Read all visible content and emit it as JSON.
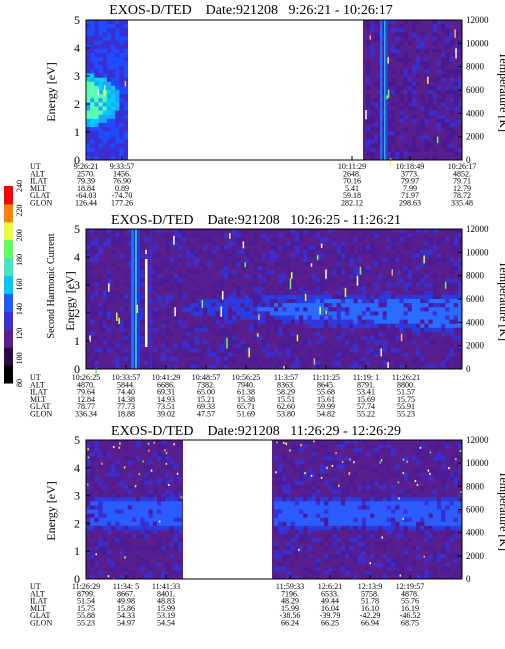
{
  "colorbar": {
    "label": "Second Harmonic Current",
    "ticks": [
      "80",
      "100",
      "120",
      "140",
      "160",
      "180",
      "200",
      "220",
      "240"
    ],
    "colors": [
      "#000000",
      "#2a0a4a",
      "#5a1f8f",
      "#3a2fd0",
      "#1e5cff",
      "#00c8ff",
      "#40e8c0",
      "#60ff60",
      "#e8ff40",
      "#ff8000",
      "#ff0000"
    ]
  },
  "orbit_labels": [
    "UT",
    "ALT",
    "ILAT",
    "MLT",
    "GLAT",
    "GLON"
  ],
  "panels": [
    {
      "title": "EXOS-D/TED    Date:921208   9:26:21 - 10:26:17",
      "ylabel": "Energy [eV]",
      "y2label": "Temperature [K]",
      "yticks": [
        "0",
        "1",
        "2",
        "3",
        "4",
        "5"
      ],
      "y2ticks": [
        "0",
        "2000",
        "4000",
        "6000",
        "8000",
        "10000",
        "12000"
      ],
      "orbit": [
        [
          "9:26:21",
          "2570.",
          "79.39",
          "18.84",
          "-64.03",
          "126.44"
        ],
        [
          "9:33:57",
          "1456.",
          "76.90",
          "0.89",
          "-74.70",
          "177.26"
        ],
        [
          "10:11:29",
          "2648.",
          "70.16",
          "5.41",
          "59.18",
          "282.12"
        ],
        [
          "10:18:49",
          "3773.",
          "79.97",
          "7.99",
          "71.97",
          "298.63"
        ],
        [
          "10:26:17",
          "4852.",
          "79.71",
          "12.79",
          "78.72",
          "335.48"
        ]
      ]
    },
    {
      "title": "EXOS-D/TED    Date:921208   10:26:25 - 11:26:21",
      "ylabel": "Energy [eV]",
      "y2label": "Temperature [K]",
      "yticks": [
        "0",
        "1",
        "2",
        "3",
        "4",
        "5"
      ],
      "y2ticks": [
        "0",
        "2000",
        "4000",
        "6000",
        "8000",
        "10000",
        "12000"
      ],
      "orbit": [
        [
          "10:26:25",
          "4870.",
          "79.64",
          "12.84",
          "78.77",
          "336.34"
        ],
        [
          "10:33:57",
          "5844.",
          "74.40",
          "14.38",
          "77.73",
          "18.88"
        ],
        [
          "10:41:29",
          "6686.",
          "69.31",
          "14.93",
          "73.51",
          "39.02"
        ],
        [
          "10:48:57",
          "7382.",
          "65.00",
          "15.21",
          "69.33",
          "47.57"
        ],
        [
          "10:56:25",
          "7940.",
          "61.38",
          "15.38",
          "65.71",
          "51.69"
        ],
        [
          "11:3:57",
          "8363.",
          "58.29",
          "15.51",
          "62.60",
          "53.80"
        ],
        [
          "11:11:25",
          "8645.",
          "55.68",
          "15.61",
          "59.99",
          "54.82"
        ],
        [
          "11:19: 1",
          "8791.",
          "53.41",
          "15.69",
          "57.74",
          "55.22"
        ],
        [
          "11:26:21",
          "8800.",
          "51.57",
          "15.75",
          "55.91",
          "55.23"
        ]
      ]
    },
    {
      "title": "EXOS-D/TED    Date:921208   11:26:29 - 12:26:29",
      "ylabel": "Energy [eV]",
      "y2label": "Temperature [K]",
      "yticks": [
        "0",
        "1",
        "2",
        "3",
        "4",
        "5"
      ],
      "y2ticks": [
        "0",
        "2000",
        "4000",
        "6000",
        "8000",
        "10000",
        "12000"
      ],
      "orbit": [
        [
          "11:26:29",
          "8799.",
          "51.54",
          "15.75",
          "55.88",
          "55.23"
        ],
        [
          "11:34: 5",
          "8667.",
          "49.98",
          "15.86",
          "54.33",
          "54.97"
        ],
        [
          "11:41:33",
          "8401.",
          "48.83",
          "15.99",
          "53.19",
          "54.54"
        ],
        [
          "11:59:33",
          "7196.",
          "48.29",
          "15.99",
          "-38.56",
          "66.24"
        ],
        [
          "12:6:21",
          "6533.",
          "49.44",
          "16.04",
          "-39.79",
          "66.25"
        ],
        [
          "12:13:9",
          "5758.",
          "51.78",
          "16.10",
          "-42.29",
          "66.94"
        ],
        [
          "12:19:57",
          "4878.",
          "55.76",
          "16.19",
          "-46.52",
          "68.75"
        ]
      ]
    }
  ],
  "chart_data": [
    {
      "type": "heatmap",
      "title": "EXOS-D/TED    Date:921208   9:26:21 - 10:26:17",
      "xlabel": "UT",
      "ylabel": "Energy [eV]",
      "y2label": "Temperature [K]",
      "ylim": [
        0,
        5
      ],
      "y2lim": [
        0,
        12000
      ],
      "colorbar_label": "Second Harmonic Current",
      "colorbar_ticks": [
        80,
        100,
        120,
        140,
        160,
        180,
        200,
        220,
        240
      ],
      "time_range": [
        "9:26:21",
        "10:26:17"
      ],
      "data_coverage": [
        [
          "9:26:21",
          "9:36:30"
        ],
        [
          "10:10:40",
          "10:26:17"
        ]
      ]
    },
    {
      "type": "heatmap",
      "title": "EXOS-D/TED    Date:921208   10:26:25 - 11:26:21",
      "xlabel": "UT",
      "ylabel": "Energy [eV]",
      "y2label": "Temperature [K]",
      "ylim": [
        0,
        5
      ],
      "y2lim": [
        0,
        12000
      ],
      "colorbar_label": "Second Harmonic Current",
      "colorbar_ticks": [
        80,
        100,
        120,
        140,
        160,
        180,
        200,
        220,
        240
      ],
      "time_range": [
        "10:26:25",
        "11:26:21"
      ],
      "data_coverage": [
        [
          "10:26:25",
          "11:26:21"
        ]
      ]
    },
    {
      "type": "heatmap",
      "title": "EXOS-D/TED    Date:921208   11:26:29 - 12:26:29",
      "xlabel": "UT",
      "ylabel": "Energy [eV]",
      "y2label": "Temperature [K]",
      "ylim": [
        0,
        5
      ],
      "y2lim": [
        0,
        12000
      ],
      "colorbar_label": "Second Harmonic Current",
      "colorbar_ticks": [
        80,
        100,
        120,
        140,
        160,
        180,
        200,
        220,
        240
      ],
      "time_range": [
        "11:26:29",
        "12:26:29"
      ],
      "data_coverage": [
        [
          "11:26:29",
          "11:44:10"
        ],
        [
          "11:57:00",
          "12:26:29"
        ]
      ]
    }
  ]
}
